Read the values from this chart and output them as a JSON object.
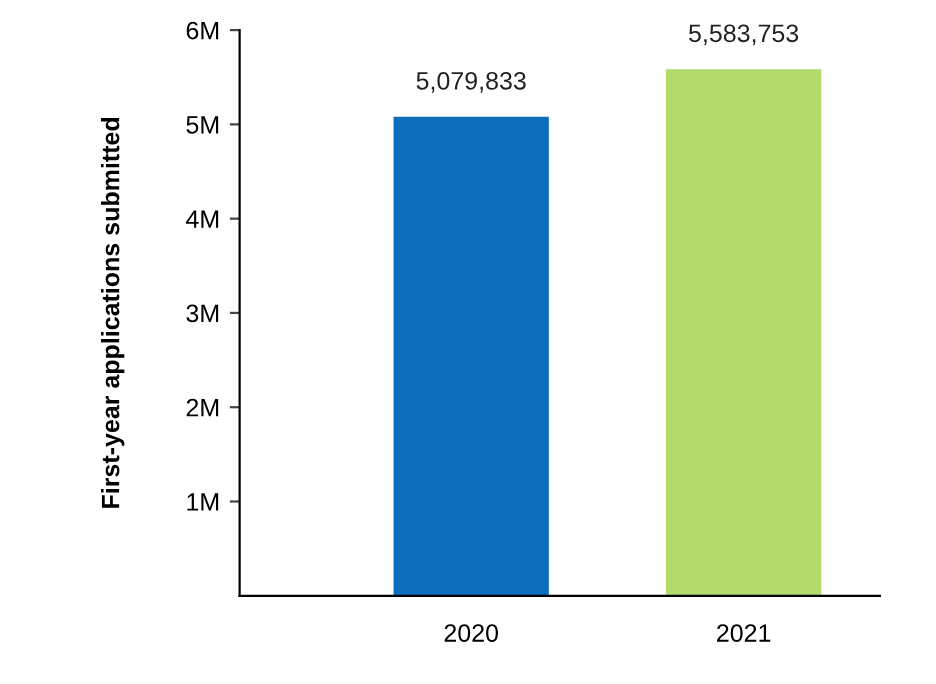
{
  "chart_data": {
    "type": "bar",
    "ylabel": "First-year applications submitted",
    "categories": [
      "2020",
      "2021"
    ],
    "values": [
      5079833,
      5583753
    ],
    "colors": [
      "#0a6ebd",
      "#b5d96a"
    ],
    "value_labels": [
      "5,079,833",
      "5,583,753"
    ],
    "ylim": [
      0,
      6000000
    ],
    "yticks": [
      {
        "value": 1000000,
        "label": "1M"
      },
      {
        "value": 2000000,
        "label": "2M"
      },
      {
        "value": 3000000,
        "label": "3M"
      },
      {
        "value": 4000000,
        "label": "4M"
      },
      {
        "value": 5000000,
        "label": "5M"
      },
      {
        "value": 6000000,
        "label": "6M"
      }
    ],
    "grid": false,
    "legend": false
  }
}
